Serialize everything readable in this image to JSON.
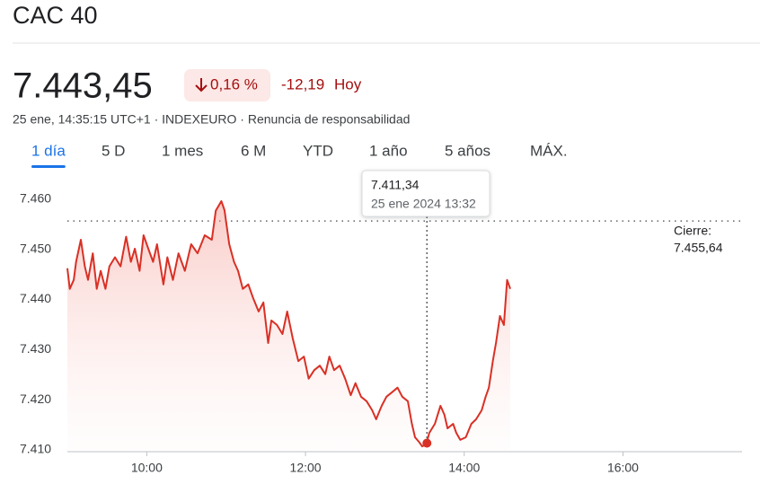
{
  "header": {
    "title": "CAC 40",
    "price": "7.443,45",
    "change_percent": "0,16 %",
    "change_value": "-12,19",
    "change_period": "Hoy",
    "subline": "25 ene, 14:35:15 UTC+1 · INDEXEURO · Renuncia de responsabilidad"
  },
  "tabs": [
    "1 día",
    "5 D",
    "1 mes",
    "6 M",
    "YTD",
    "1 año",
    "5 años",
    "MÁX."
  ],
  "selected_tab": 0,
  "chart_data": {
    "type": "area-line",
    "color": "#d93025",
    "x": [
      9.0,
      9.03,
      9.08,
      9.11,
      9.17,
      9.22,
      9.26,
      9.32,
      9.37,
      9.42,
      9.48,
      9.53,
      9.6,
      9.67,
      9.74,
      9.8,
      9.85,
      9.91,
      9.96,
      10.02,
      10.08,
      10.13,
      10.21,
      10.26,
      10.33,
      10.4,
      10.48,
      10.56,
      10.64,
      10.73,
      10.82,
      10.87,
      10.94,
      10.98,
      11.04,
      11.1,
      11.15,
      11.21,
      11.28,
      11.34,
      11.41,
      11.47,
      11.53,
      11.57,
      11.64,
      11.71,
      11.77,
      11.84,
      11.91,
      11.98,
      12.04,
      12.11,
      12.18,
      12.25,
      12.3,
      12.36,
      12.43,
      12.5,
      12.57,
      12.63,
      12.7,
      12.77,
      12.84,
      12.89,
      12.96,
      13.02,
      13.09,
      13.16,
      13.22,
      13.29,
      13.34,
      13.38,
      13.43,
      13.47,
      13.52,
      13.56,
      13.63,
      13.7,
      13.75,
      13.79,
      13.86,
      13.9,
      13.95,
      14.02,
      14.09,
      14.15,
      14.22,
      14.27,
      14.31,
      14.36,
      14.4,
      14.45,
      14.5,
      14.54,
      14.58
    ],
    "values": [
      7446.2,
      7442.1,
      7443.9,
      7447.5,
      7451.9,
      7446.6,
      7443.9,
      7449.2,
      7442.1,
      7445.7,
      7442.1,
      7446.6,
      7448.4,
      7446.6,
      7452.5,
      7447.5,
      7450.1,
      7445.7,
      7452.8,
      7450.1,
      7447.5,
      7451.0,
      7443.0,
      7448.4,
      7443.9,
      7449.2,
      7445.7,
      7451.0,
      7449.2,
      7452.8,
      7451.9,
      7457.7,
      7459.6,
      7457.8,
      7451.0,
      7447.5,
      7445.7,
      7442.1,
      7443.0,
      7440.3,
      7437.6,
      7439.4,
      7431.3,
      7435.8,
      7434.9,
      7433.1,
      7437.6,
      7432.2,
      7427.7,
      7428.6,
      7424.2,
      7425.9,
      7426.8,
      7425.1,
      7428.6,
      7425.9,
      7426.8,
      7424.2,
      7420.9,
      7423.3,
      7420.6,
      7419.7,
      7417.9,
      7416.1,
      7418.8,
      7420.6,
      7421.5,
      7422.4,
      7420.6,
      7419.7,
      7415.2,
      7412.5,
      7411.6,
      7410.7,
      7411.1,
      7413.4,
      7415.2,
      7418.8,
      7417.0,
      7414.3,
      7415.2,
      7413.4,
      7412.0,
      7412.5,
      7415.2,
      7416.1,
      7417.9,
      7420.6,
      7422.4,
      7427.7,
      7431.3,
      7436.7,
      7434.9,
      7443.9,
      7442.1
    ],
    "xlim": [
      9,
      17.5
    ],
    "xticks": [
      {
        "value": 10,
        "label": "10:00"
      },
      {
        "value": 12,
        "label": "12:00"
      },
      {
        "value": 14,
        "label": "14:00"
      },
      {
        "value": 16,
        "label": "16:00"
      }
    ],
    "ylim": [
      7410,
      7463
    ],
    "yticks": [
      {
        "value": 7460,
        "label": "7.460"
      },
      {
        "value": 7450,
        "label": "7.450"
      },
      {
        "value": 7440,
        "label": "7.440"
      },
      {
        "value": 7430,
        "label": "7.430"
      },
      {
        "value": 7420,
        "label": "7.420"
      },
      {
        "value": 7410,
        "label": "7.410"
      }
    ],
    "previous_close": {
      "label": "Cierre:",
      "value": 7455.64,
      "value_label": "7.455,64"
    },
    "hover": {
      "x": 13.53,
      "value": 7411.34,
      "value_label": "7.411,34",
      "time": "25 ene 2024 13:32"
    }
  }
}
